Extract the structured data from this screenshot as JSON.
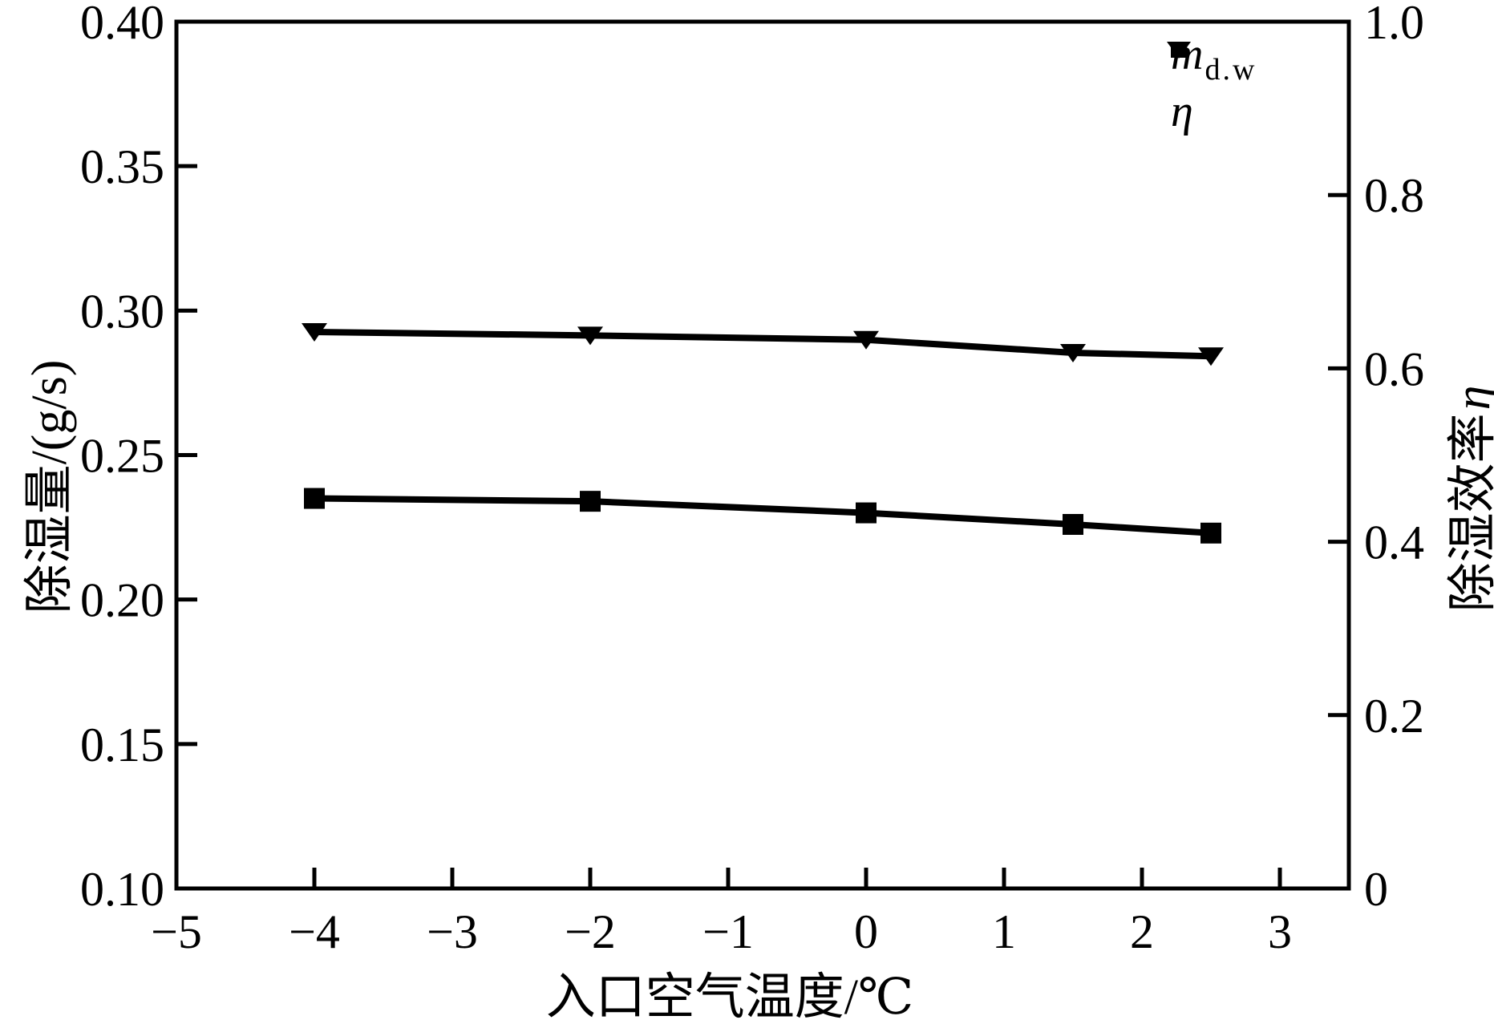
{
  "figure": {
    "background": "#ffffff",
    "ink": "#000000"
  },
  "chart_data": {
    "type": "line",
    "title": "",
    "xlabel": "入口空气温度/℃",
    "ylabel_left": "除湿量/(g/s)",
    "ylabel_right_text": "除湿效率",
    "ylabel_right_symbol": "η",
    "grid": false,
    "legend_position": "top-right-inside",
    "x_axis": {
      "min": -5,
      "max": 3.5,
      "ticks": [
        -5,
        -4,
        -3,
        -2,
        -1,
        0,
        1,
        2,
        3
      ],
      "tick_labels": [
        "−5",
        "−4",
        "−3",
        "−2",
        "−1",
        "0",
        "1",
        "2",
        "3"
      ]
    },
    "left_axis": {
      "min": 0.1,
      "max": 0.4,
      "ticks": [
        0.1,
        0.15,
        0.2,
        0.25,
        0.3,
        0.35,
        0.4
      ],
      "tick_labels": [
        "0.10",
        "0.15",
        "0.20",
        "0.25",
        "0.30",
        "0.35",
        "0.40"
      ]
    },
    "right_axis": {
      "min": 0,
      "max": 1.0,
      "ticks": [
        0,
        0.2,
        0.4,
        0.6,
        0.8,
        1.0
      ],
      "tick_labels": [
        "0",
        "0.2",
        "0.4",
        "0.6",
        "0.8",
        "1.0"
      ]
    },
    "x": [
      -4,
      -2,
      0,
      1.5,
      2.5
    ],
    "series": [
      {
        "name": "m_d.w",
        "axis": "left",
        "marker": "square",
        "color": "#000000",
        "values": [
          0.235,
          0.234,
          0.23,
          0.226,
          0.223
        ]
      },
      {
        "name": "η",
        "axis": "right",
        "marker": "triangle-down",
        "color": "#000000",
        "values": [
          0.642,
          0.638,
          0.633,
          0.618,
          0.614
        ]
      }
    ]
  },
  "legend": {
    "rows": [
      {
        "marker": "square",
        "label_main": "m",
        "label_sub": "d.w"
      },
      {
        "marker": "triangle-down",
        "label_main": "η",
        "label_sub": ""
      }
    ]
  }
}
